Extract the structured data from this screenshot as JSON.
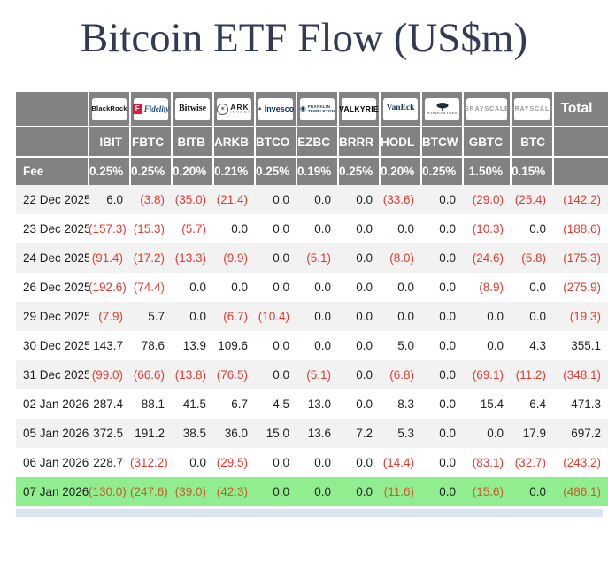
{
  "title": "Bitcoin ETF Flow (US$m)",
  "colors": {
    "header_bg": "#828282",
    "row_alt": "#f2f2f2",
    "highlight_row": "#90ee90",
    "negative": "#e8392f",
    "highlight_negative": "#c75b2e",
    "title_color": "#333a56",
    "bottom_strip": "#dbe5f1",
    "fidelity_red": "#e31837",
    "brand_navy": "#12395f"
  },
  "chart_data": {
    "type": "table",
    "title": "Bitcoin ETF Flow (US$m)",
    "fee_label": "Fee",
    "total_label": "Total",
    "providers": [
      {
        "name": "BlackRock",
        "style": "blackrock"
      },
      {
        "name": "Fidelity",
        "style": "fidelity"
      },
      {
        "name": "Bitwise",
        "style": "bitwise"
      },
      {
        "name": "ARK INVEST",
        "style": "ark"
      },
      {
        "name": "Invesco",
        "style": "invesco"
      },
      {
        "name": "FRANKLIN TEMPLETON",
        "style": "franklin"
      },
      {
        "name": "VALKYRIE",
        "style": "valkyrie"
      },
      {
        "name": "VanEck",
        "style": "vaneck"
      },
      {
        "name": "WISDOMTREE",
        "style": "wisdomtree"
      },
      {
        "name": "GRAYSCALE",
        "style": "grayscale"
      },
      {
        "name": "GRAYSCALE",
        "style": "grayscale"
      }
    ],
    "tickers": [
      "IBIT",
      "FBTC",
      "BITB",
      "ARKB",
      "BTCO",
      "EZBC",
      "BRRR",
      "HODL",
      "BTCW",
      "GBTC",
      "BTC"
    ],
    "fees": [
      "0.25%",
      "0.25%",
      "0.20%",
      "0.21%",
      "0.25%",
      "0.19%",
      "0.25%",
      "0.20%",
      "0.25%",
      "1.50%",
      "0.15%"
    ],
    "rows": [
      {
        "date": "22 Dec 2025",
        "values": [
          "6.0",
          "(3.8)",
          "(35.0)",
          "(21.4)",
          "0.0",
          "0.0",
          "0.0",
          "(33.6)",
          "0.0",
          "(29.0)",
          "(25.4)",
          "(142.2)"
        ],
        "highlight": false
      },
      {
        "date": "23 Dec 2025",
        "values": [
          "(157.3)",
          "(15.3)",
          "(5.7)",
          "0.0",
          "0.0",
          "0.0",
          "0.0",
          "0.0",
          "0.0",
          "(10.3)",
          "0.0",
          "(188.6)"
        ],
        "highlight": false
      },
      {
        "date": "24 Dec 2025",
        "values": [
          "(91.4)",
          "(17.2)",
          "(13.3)",
          "(9.9)",
          "0.0",
          "(5.1)",
          "0.0",
          "(8.0)",
          "0.0",
          "(24.6)",
          "(5.8)",
          "(175.3)"
        ],
        "highlight": false
      },
      {
        "date": "26 Dec 2025",
        "values": [
          "(192.6)",
          "(74.4)",
          "0.0",
          "0.0",
          "0.0",
          "0.0",
          "0.0",
          "0.0",
          "0.0",
          "(8.9)",
          "0.0",
          "(275.9)"
        ],
        "highlight": false
      },
      {
        "date": "29 Dec 2025",
        "values": [
          "(7.9)",
          "5.7",
          "0.0",
          "(6.7)",
          "(10.4)",
          "0.0",
          "0.0",
          "0.0",
          "0.0",
          "0.0",
          "0.0",
          "(19.3)"
        ],
        "highlight": false
      },
      {
        "date": "30 Dec 2025",
        "values": [
          "143.7",
          "78.6",
          "13.9",
          "109.6",
          "0.0",
          "0.0",
          "0.0",
          "5.0",
          "0.0",
          "0.0",
          "4.3",
          "355.1"
        ],
        "highlight": false
      },
      {
        "date": "31 Dec 2025",
        "values": [
          "(99.0)",
          "(66.6)",
          "(13.8)",
          "(76.5)",
          "0.0",
          "(5.1)",
          "0.0",
          "(6.8)",
          "0.0",
          "(69.1)",
          "(11.2)",
          "(348.1)"
        ],
        "highlight": false
      },
      {
        "date": "02 Jan 2026",
        "values": [
          "287.4",
          "88.1",
          "41.5",
          "6.7",
          "4.5",
          "13.0",
          "0.0",
          "8.3",
          "0.0",
          "15.4",
          "6.4",
          "471.3"
        ],
        "highlight": false
      },
      {
        "date": "05 Jan 2026",
        "values": [
          "372.5",
          "191.2",
          "38.5",
          "36.0",
          "15.0",
          "13.6",
          "7.2",
          "5.3",
          "0.0",
          "0.0",
          "17.9",
          "697.2"
        ],
        "highlight": false
      },
      {
        "date": "06 Jan 2026",
        "values": [
          "228.7",
          "(312.2)",
          "0.0",
          "(29.5)",
          "0.0",
          "0.0",
          "0.0",
          "(14.4)",
          "0.0",
          "(83.1)",
          "(32.7)",
          "(243.2)"
        ],
        "highlight": false
      },
      {
        "date": "07 Jan 2026",
        "values": [
          "(130.0)",
          "(247.6)",
          "(39.0)",
          "(42.3)",
          "0.0",
          "0.0",
          "0.0",
          "(11.6)",
          "0.0",
          "(15.6)",
          "0.0",
          "(486.1)"
        ],
        "highlight": true
      }
    ]
  }
}
